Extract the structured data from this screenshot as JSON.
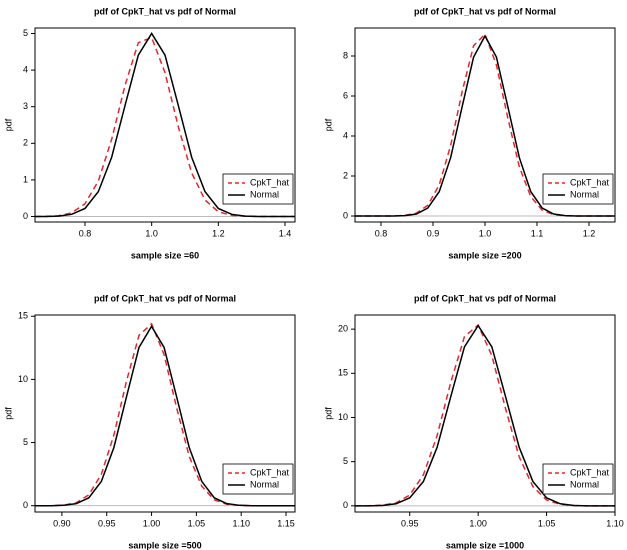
{
  "chart_data": [
    {
      "type": "line",
      "title": "pdf of CpkT_hat vs pdf of Normal",
      "x_label": "sample size =60",
      "y_label": "pdf",
      "x": [
        0.65,
        0.68,
        0.72,
        0.76,
        0.8,
        0.84,
        0.88,
        0.92,
        0.96,
        1.0,
        1.04,
        1.08,
        1.12,
        1.16,
        1.2,
        1.24,
        1.28,
        1.32,
        1.36,
        1.4,
        1.43
      ],
      "series": [
        {
          "name": "CpkT_hat",
          "color": "#e8262a",
          "dash": true,
          "values": [
            0,
            0,
            0.02,
            0.1,
            0.35,
            0.97,
            2.11,
            3.58,
            4.75,
            4.89,
            3.93,
            2.45,
            1.19,
            0.45,
            0.13,
            0.03,
            0.01,
            0,
            0,
            0,
            0
          ]
        },
        {
          "name": "Normal",
          "color": "#000000",
          "dash": false,
          "values": [
            0,
            0,
            0.01,
            0.06,
            0.22,
            0.68,
            1.62,
            3.03,
            4.41,
            5.0,
            4.41,
            3.03,
            1.62,
            0.68,
            0.22,
            0.06,
            0.01,
            0,
            0,
            0,
            0
          ]
        }
      ],
      "xlim": [
        0.65,
        1.43
      ],
      "ylim": [
        -0.15,
        5.15
      ],
      "xticks": [
        0.8,
        {
          "value": 1,
          "label": "1.0"
        },
        1.2,
        1.4
      ],
      "yticks": [
        0,
        1,
        2,
        3,
        4,
        5
      ],
      "legend": "lower right"
    },
    {
      "type": "line",
      "title": "pdf of CpkT_hat vs pdf of Normal",
      "x_label": "sample size =200",
      "y_label": "pdf",
      "x": [
        0.75,
        0.8,
        0.824,
        0.846,
        0.868,
        0.89,
        0.912,
        0.934,
        0.956,
        0.978,
        1.0,
        1.022,
        1.044,
        1.066,
        1.088,
        1.11,
        1.132,
        1.154,
        1.176,
        1.2,
        1.25
      ],
      "series": [
        {
          "name": "CpkT_hat",
          "color": "#e8262a",
          "dash": true,
          "values": [
            0,
            0,
            0,
            0.03,
            0.14,
            0.54,
            1.56,
            3.53,
            6.21,
            8.51,
            9.09,
            7.55,
            4.89,
            2.46,
            0.97,
            0.29,
            0.07,
            0.01,
            0,
            0,
            0
          ]
        },
        {
          "name": "Normal",
          "color": "#000000",
          "dash": false,
          "values": [
            0,
            0,
            0,
            0.02,
            0.1,
            0.4,
            1.22,
            2.92,
            5.46,
            7.94,
            9.0,
            7.94,
            5.46,
            2.92,
            1.22,
            0.4,
            0.1,
            0.02,
            0,
            0,
            0
          ]
        }
      ],
      "xlim": [
        0.75,
        1.25
      ],
      "ylim": [
        -0.3,
        9.4
      ],
      "xticks": [
        0.8,
        0.9,
        {
          "value": 1,
          "label": "1.0"
        },
        1.1,
        1.2
      ],
      "yticks": [
        0,
        2,
        4,
        6,
        8
      ],
      "legend": "lower right"
    },
    {
      "type": "line",
      "title": "pdf of CpkT_hat vs pdf of Normal",
      "x_label": "sample size =500",
      "y_label": "pdf",
      "x": [
        0.87,
        0.888,
        0.902,
        0.916,
        0.93,
        0.944,
        0.958,
        0.972,
        0.986,
        1.0,
        1.014,
        1.028,
        1.042,
        1.056,
        1.07,
        1.084,
        1.098,
        1.112,
        1.13,
        1.16
      ],
      "series": [
        {
          "name": "CpkT_hat",
          "color": "#e8262a",
          "dash": true,
          "values": [
            0,
            0,
            0.05,
            0.23,
            0.86,
            2.48,
            5.6,
            9.85,
            13.49,
            14.4,
            11.96,
            7.74,
            3.9,
            1.54,
            0.46,
            0.11,
            0.02,
            0,
            0,
            0
          ]
        },
        {
          "name": "Normal",
          "color": "#000000",
          "dash": false,
          "values": [
            0,
            0,
            0.03,
            0.16,
            0.62,
            1.92,
            4.61,
            8.61,
            12.53,
            14.2,
            12.53,
            8.61,
            4.61,
            1.92,
            0.62,
            0.16,
            0.03,
            0,
            0,
            0
          ]
        }
      ],
      "xlim": [
        0.87,
        1.16
      ],
      "ylim": [
        -0.5,
        15.1
      ],
      "xticks": [
        {
          "value": 0.9,
          "label": "0.90"
        },
        0.95,
        {
          "value": 1,
          "label": "1.00"
        },
        1.05,
        {
          "value": 1.1,
          "label": "1.10"
        },
        1.15
      ],
      "yticks": [
        0,
        5,
        10,
        15
      ],
      "legend": "lower right"
    },
    {
      "type": "line",
      "title": "pdf of CpkT_hat vs pdf of Normal",
      "x_label": "sample size =1000",
      "y_label": "pdf",
      "x": [
        0.91,
        0.92,
        0.93,
        0.94,
        0.95,
        0.96,
        0.97,
        0.98,
        0.99,
        1.0,
        1.01,
        1.02,
        1.03,
        1.04,
        1.05,
        1.06,
        1.07,
        1.08,
        1.1
      ],
      "series": [
        {
          "name": "CpkT_hat",
          "color": "#e8262a",
          "dash": true,
          "values": [
            0,
            0.01,
            0.07,
            0.33,
            1.22,
            3.52,
            7.95,
            13.99,
            19.16,
            20.46,
            17.0,
            11.0,
            5.54,
            2.18,
            0.66,
            0.16,
            0.03,
            0,
            0
          ]
        },
        {
          "name": "Normal",
          "color": "#000000",
          "dash": false,
          "values": [
            0,
            0,
            0.04,
            0.23,
            0.9,
            2.76,
            6.62,
            12.37,
            18.0,
            20.4,
            18.0,
            12.37,
            6.62,
            2.76,
            0.9,
            0.23,
            0.04,
            0,
            0
          ]
        }
      ],
      "xlim": [
        0.91,
        1.1
      ],
      "ylim": [
        -0.7,
        21.6
      ],
      "xticks": [
        0.95,
        {
          "value": 1,
          "label": "1.00"
        },
        1.05,
        {
          "value": 1.1,
          "label": "1.10"
        }
      ],
      "yticks": [
        0,
        5,
        10,
        15,
        20
      ],
      "legend": "lower right"
    }
  ]
}
